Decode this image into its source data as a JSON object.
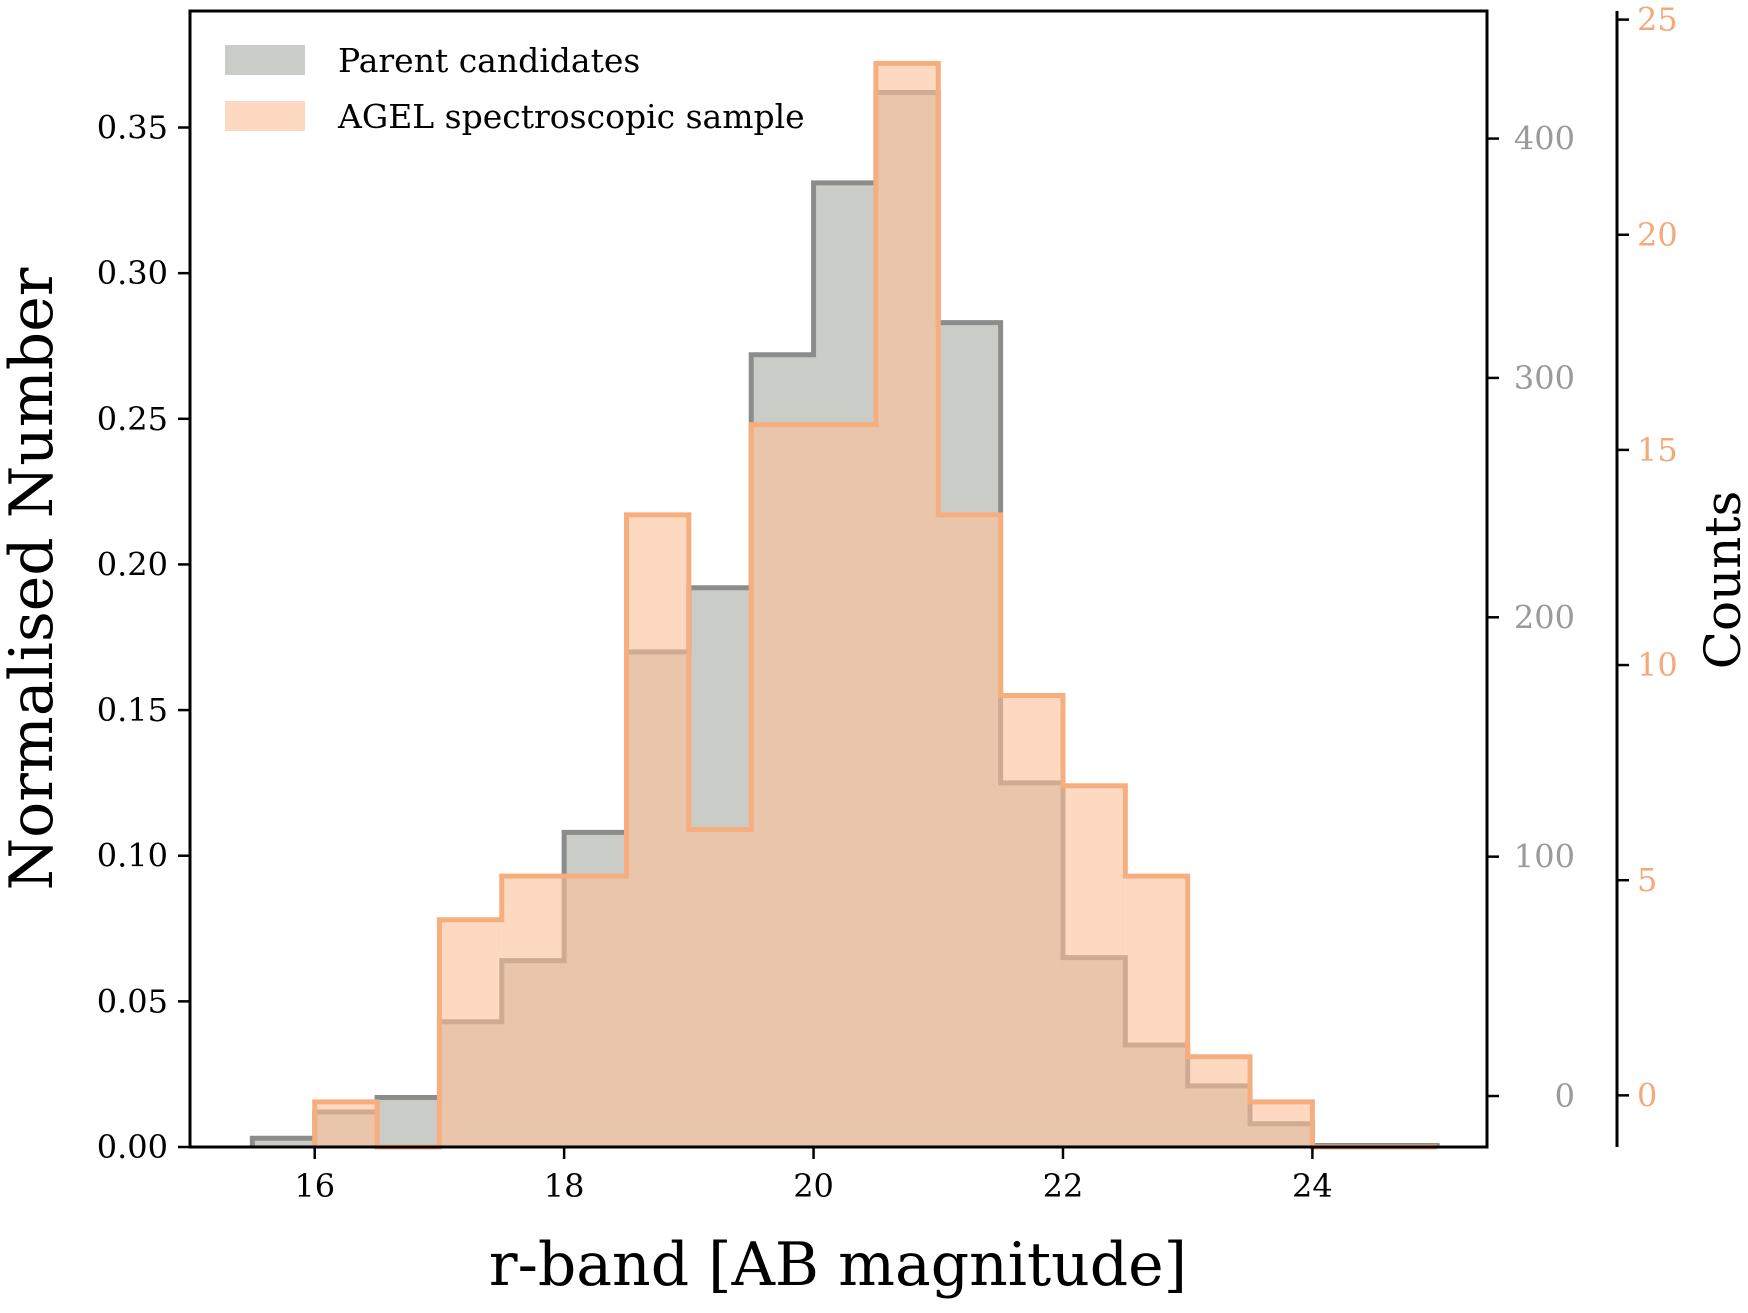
{
  "chart_data": {
    "type": "histogram",
    "xlabel": "r-band [AB magnitude]",
    "ylabel": "Normalised Number",
    "y2label": "Counts",
    "xlim": [
      15.0,
      25.4
    ],
    "ylim": [
      0,
      0.39
    ],
    "x_ticks": [
      "16",
      "18",
      "20",
      "22",
      "24"
    ],
    "y_ticks": [
      "0.00",
      "0.05",
      "0.10",
      "0.15",
      "0.20",
      "0.25",
      "0.30",
      "0.35"
    ],
    "right_axis_grey": {
      "label_color": "#9a9a9a",
      "range": [
        -21.3,
        453.3
      ],
      "ticks": [
        "0",
        "100",
        "200",
        "300",
        "400"
      ]
    },
    "right_axis_orange": {
      "label_color": "#f4a97a",
      "range": [
        -1.2,
        25.2
      ],
      "ticks": [
        "0",
        "5",
        "10",
        "15",
        "20",
        "25"
      ]
    },
    "legend": {
      "position": "top-left"
    },
    "series": [
      {
        "name": "Parent candidates",
        "fill_color": "#a6aaa4",
        "edge_color": "#8c8c8c",
        "bins": [
          [
            15.5,
            16.0,
            0.003
          ],
          [
            16.0,
            16.5,
            0.012
          ],
          [
            16.5,
            17.0,
            0.017
          ],
          [
            17.0,
            17.5,
            0.043
          ],
          [
            17.5,
            18.0,
            0.064
          ],
          [
            18.0,
            18.5,
            0.108
          ],
          [
            18.5,
            19.0,
            0.17
          ],
          [
            19.0,
            19.5,
            0.192
          ],
          [
            19.5,
            20.0,
            0.272
          ],
          [
            20.0,
            20.5,
            0.331
          ],
          [
            20.5,
            21.0,
            0.362
          ],
          [
            21.0,
            21.5,
            0.283
          ],
          [
            21.5,
            22.0,
            0.125
          ],
          [
            22.0,
            22.5,
            0.065
          ],
          [
            22.5,
            23.0,
            0.035
          ],
          [
            23.0,
            23.5,
            0.021
          ],
          [
            23.5,
            24.0,
            0.008
          ],
          [
            24.0,
            25.0,
            0.0005
          ]
        ]
      },
      {
        "name": "AGEL spectroscopic sample",
        "fill_color": "#fdbf98",
        "edge_color": "#f7ae7e",
        "bins": [
          [
            16.0,
            16.5,
            0.0155
          ],
          [
            16.5,
            17.0,
            0.0
          ],
          [
            17.0,
            17.5,
            0.078
          ],
          [
            17.5,
            18.0,
            0.093
          ],
          [
            18.0,
            18.5,
            0.093
          ],
          [
            18.5,
            19.0,
            0.217
          ],
          [
            19.0,
            19.5,
            0.109
          ],
          [
            19.5,
            20.0,
            0.248
          ],
          [
            20.0,
            20.5,
            0.248
          ],
          [
            20.5,
            21.0,
            0.372
          ],
          [
            21.0,
            21.5,
            0.217
          ],
          [
            21.5,
            22.0,
            0.155
          ],
          [
            22.0,
            22.5,
            0.124
          ],
          [
            22.5,
            23.0,
            0.093
          ],
          [
            23.0,
            23.5,
            0.031
          ],
          [
            23.5,
            24.0,
            0.0155
          ],
          [
            24.0,
            25.0,
            0.0
          ]
        ]
      }
    ]
  }
}
